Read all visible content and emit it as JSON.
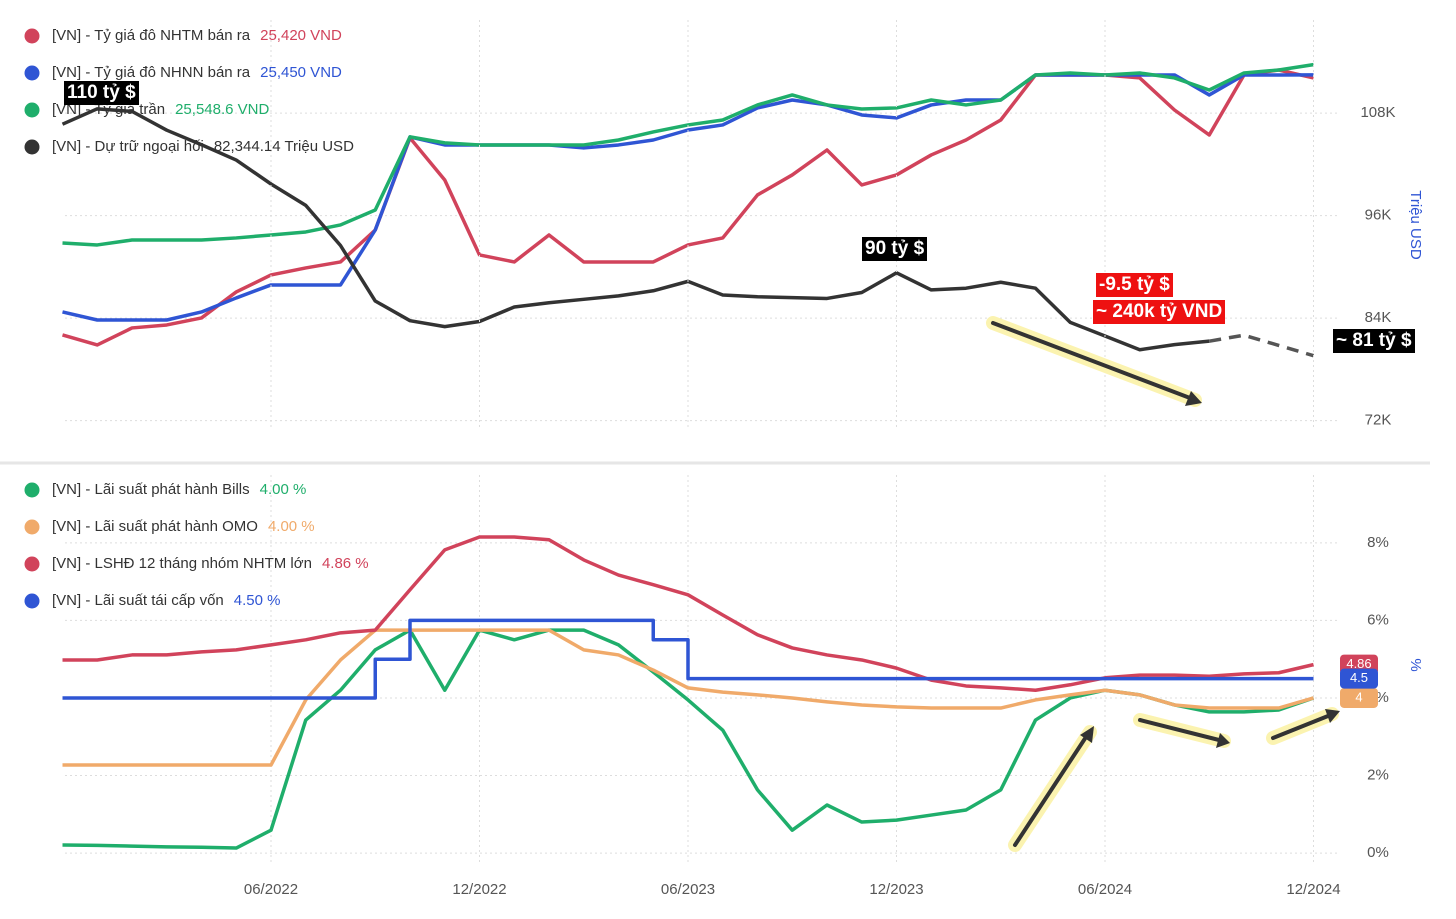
{
  "chart_data": [
    {
      "type": "line",
      "ylabel": "Triệu USD",
      "categories": [
        null,
        null,
        null,
        null,
        null,
        null,
        null,
        null,
        null,
        null,
        null,
        null,
        null,
        null,
        null,
        null,
        null,
        null,
        null,
        null,
        null,
        null,
        null,
        null,
        null,
        null,
        null,
        null,
        null,
        null,
        null,
        null,
        null,
        null,
        null,
        null,
        null
      ],
      "ylim": [
        70900,
        118900
      ],
      "yticks": [
        {
          "value": 72000,
          "label": "72K"
        },
        {
          "value": 84000,
          "label": "84K"
        },
        {
          "value": 96000,
          "label": "96K"
        },
        {
          "value": 108000,
          "label": "108K"
        }
      ],
      "y2lim": [
        22005,
        25982
      ],
      "grid": true,
      "annotations": [
        "110 tỷ $",
        "90 tỷ $",
        "-9.5 tỷ $",
        "~ 240k tỷ VND",
        "~ 81 tỷ $"
      ],
      "series": [
        {
          "name": "[VN] - Tỷ giá đô NHTM bán ra",
          "legend_value": "25,420 VND",
          "color": "#d1435b",
          "axis": "y2",
          "values": [
            22927,
            22830,
            22995,
            23024,
            23092,
            23344,
            23509,
            23577,
            23635,
            23945,
            24838,
            24430,
            23703,
            23635,
            23897,
            23635,
            23635,
            23635,
            23800,
            23868,
            24285,
            24479,
            24721,
            24382,
            24479,
            24673,
            24818,
            25012,
            25449,
            25449,
            25449,
            25420,
            25109,
            24867,
            25449,
            25497,
            25420
          ]
        },
        {
          "name": "[VN] - Tỷ giá đô NHNN bán ra",
          "legend_value": "25,450 VND",
          "color": "#2f55d4",
          "axis": "y2",
          "values": [
            23150,
            23072,
            23072,
            23072,
            23150,
            23286,
            23412,
            23412,
            23412,
            23945,
            24848,
            24770,
            24770,
            24770,
            24770,
            24741,
            24770,
            24818,
            24915,
            24964,
            25129,
            25206,
            25158,
            25061,
            25032,
            25158,
            25206,
            25206,
            25449,
            25449,
            25449,
            25449,
            25449,
            25255,
            25449,
            25449,
            25450
          ]
        },
        {
          "name": "[VN] - Tỷ giá trần",
          "legend_value": "25,548.6 VND",
          "color": "#1fae6b",
          "axis": "y2",
          "values": [
            23819,
            23800,
            23848,
            23848,
            23848,
            23868,
            23897,
            23926,
            23994,
            24139,
            24848,
            24790,
            24770,
            24770,
            24770,
            24770,
            24818,
            24896,
            24964,
            25012,
            25158,
            25255,
            25158,
            25119,
            25129,
            25206,
            25158,
            25206,
            25449,
            25468,
            25449,
            25468,
            25420,
            25303,
            25468,
            25497,
            25549
          ]
        },
        {
          "name": "[VN] - Dự trữ ngoại hối",
          "legend_value": "82,344.14 Triệu USD",
          "color": "#333333",
          "values": [
            106700,
            108500,
            108200,
            106000,
            104300,
            102500,
            99700,
            97200,
            92500,
            86000,
            83700,
            83000,
            83600,
            85300,
            85800,
            86200,
            86600,
            87200,
            88300,
            86700,
            86500,
            86400,
            86300,
            87000,
            89300,
            87300,
            87500,
            88200,
            87500,
            83500,
            81900,
            80300,
            80900,
            81300,
            null,
            null,
            null
          ]
        },
        {
          "color": "#555555",
          "dashed": true,
          "values": [
            null,
            null,
            null,
            null,
            null,
            null,
            null,
            null,
            null,
            null,
            null,
            null,
            null,
            null,
            null,
            null,
            null,
            null,
            null,
            null,
            null,
            null,
            null,
            null,
            null,
            null,
            null,
            null,
            null,
            null,
            null,
            null,
            null,
            81300,
            82000,
            80800,
            79600
          ]
        }
      ]
    },
    {
      "type": "line",
      "ylabel": "%",
      "categories": [
        null,
        null,
        null,
        null,
        null,
        null,
        "06/2022",
        null,
        null,
        null,
        null,
        null,
        "12/2022",
        null,
        null,
        null,
        null,
        null,
        "06/2023",
        null,
        null,
        null,
        null,
        null,
        "12/2023",
        null,
        null,
        null,
        null,
        null,
        "06/2024",
        null,
        null,
        null,
        null,
        null,
        "12/2024"
      ],
      "ylim": [
        -0.23,
        9.75
      ],
      "yticks": [
        {
          "value": 0,
          "label": "0%"
        },
        {
          "value": 2,
          "label": "2%"
        },
        {
          "value": 4,
          "label": "4%"
        },
        {
          "value": 6,
          "label": "6%"
        },
        {
          "value": 8,
          "label": "8%"
        }
      ],
      "grid": true,
      "series": [
        {
          "name": "[VN] - Lãi suất phát hành Bills",
          "legend_value": "4.00 %",
          "color": "#1fae6b",
          "values": [
            0.21,
            0.2,
            0.18,
            0.16,
            0.15,
            0.13,
            0.59,
            3.43,
            4.2,
            5.24,
            5.75,
            4.2,
            5.75,
            5.5,
            5.75,
            5.75,
            5.37,
            4.67,
            3.95,
            3.17,
            1.63,
            0.59,
            1.24,
            0.8,
            0.85,
            0.98,
            1.11,
            1.63,
            3.43,
            4.0,
            4.2,
            4.08,
            3.82,
            3.64,
            3.64,
            3.69,
            4.0
          ]
        },
        {
          "name": "[VN] - Lãi suất phát hành OMO",
          "legend_value": "4.00 %",
          "color": "#f0aa6a",
          "values": [
            2.27,
            2.27,
            2.27,
            2.27,
            2.27,
            2.27,
            2.27,
            3.95,
            4.98,
            5.75,
            5.75,
            5.75,
            5.75,
            5.75,
            5.75,
            5.24,
            5.11,
            4.72,
            4.26,
            4.15,
            4.08,
            4.0,
            3.9,
            3.82,
            3.77,
            3.74,
            3.74,
            3.74,
            3.95,
            4.08,
            4.2,
            4.08,
            3.82,
            3.74,
            3.74,
            3.74,
            4.0
          ],
          "value_labels": [
            null,
            null,
            null,
            null,
            null,
            null,
            null,
            null,
            null,
            null,
            null,
            null,
            null,
            null,
            null,
            null,
            null,
            null,
            null,
            null,
            null,
            null,
            null,
            null,
            null,
            null,
            null,
            null,
            null,
            null,
            null,
            null,
            null,
            null,
            null,
            null,
            "4"
          ]
        },
        {
          "name": "[VN] - LSHĐ 12 tháng nhóm NHTM lớn",
          "legend_value": "4.86 %",
          "color": "#d1435b",
          "values": [
            4.98,
            4.98,
            5.11,
            5.11,
            5.19,
            5.24,
            5.37,
            5.5,
            5.68,
            5.75,
            6.79,
            7.82,
            8.15,
            8.15,
            8.08,
            7.56,
            7.17,
            6.92,
            6.66,
            6.14,
            5.63,
            5.29,
            5.11,
            4.98,
            4.77,
            4.46,
            4.31,
            4.26,
            4.2,
            4.34,
            4.52,
            4.59,
            4.59,
            4.56,
            4.62,
            4.65,
            4.86
          ],
          "value_labels": [
            null,
            null,
            null,
            null,
            null,
            null,
            null,
            null,
            null,
            null,
            null,
            null,
            null,
            null,
            null,
            null,
            null,
            null,
            null,
            null,
            null,
            null,
            null,
            null,
            null,
            null,
            null,
            null,
            null,
            null,
            null,
            null,
            null,
            null,
            null,
            null,
            "4.86"
          ]
        },
        {
          "name": "[VN] - Lãi suất tái cấp vốn",
          "legend_value": "4.50 %",
          "color": "#2f55d4",
          "step": true,
          "values": [
            4,
            4,
            4,
            4,
            4,
            4,
            4,
            4,
            4,
            5,
            6,
            6,
            6,
            6,
            6,
            6,
            6,
            5.5,
            4.5,
            4.5,
            4.5,
            4.5,
            4.5,
            4.5,
            4.5,
            4.5,
            4.5,
            4.5,
            4.5,
            4.5,
            4.5,
            4.5,
            4.5,
            4.5,
            4.5,
            4.5,
            4.5
          ],
          "value_labels": [
            null,
            null,
            null,
            null,
            null,
            null,
            null,
            null,
            null,
            null,
            null,
            null,
            null,
            null,
            null,
            null,
            null,
            null,
            null,
            null,
            null,
            null,
            null,
            null,
            null,
            null,
            null,
            null,
            null,
            null,
            null,
            null,
            null,
            null,
            null,
            null,
            "4.5"
          ]
        }
      ]
    }
  ]
}
